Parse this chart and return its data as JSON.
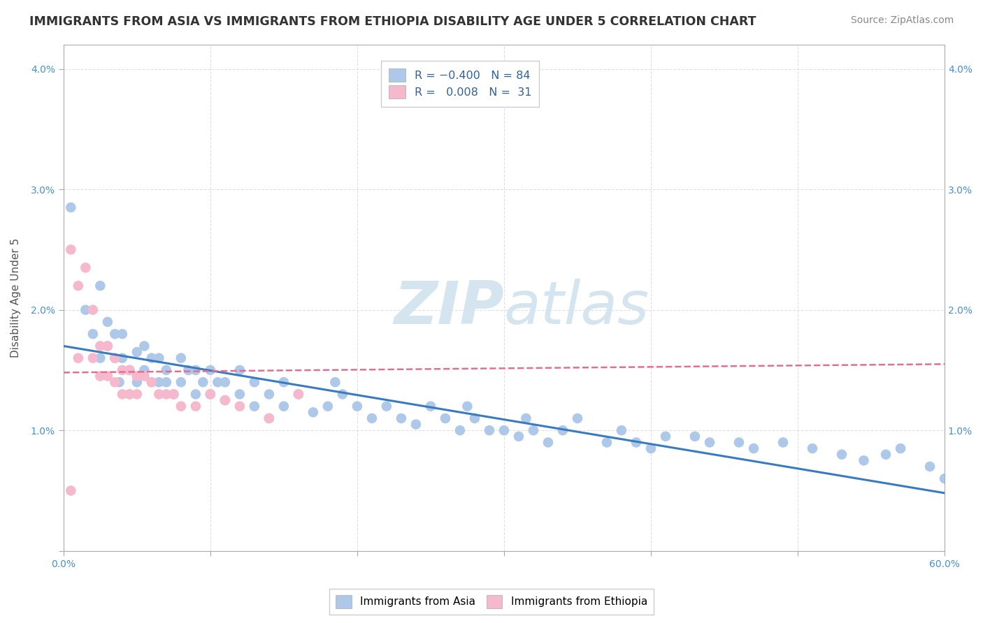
{
  "title": "IMMIGRANTS FROM ASIA VS IMMIGRANTS FROM ETHIOPIA DISABILITY AGE UNDER 5 CORRELATION CHART",
  "source_text": "Source: ZipAtlas.com",
  "ylabel": "Disability Age Under 5",
  "xlim": [
    0.0,
    0.6
  ],
  "ylim": [
    0.0,
    0.042
  ],
  "asia_R": -0.4,
  "asia_N": 84,
  "ethiopia_R": 0.008,
  "ethiopia_N": 31,
  "asia_color": "#adc8e8",
  "ethiopia_color": "#f5b8cc",
  "asia_line_color": "#3a7bbf",
  "ethiopia_line_color": "#e07090",
  "watermark_color": "#d5e5f0",
  "grid_color": "#e0e0e0",
  "asia_trend_x": [
    0.0,
    0.6
  ],
  "asia_trend_y": [
    0.017,
    0.0048
  ],
  "ethiopia_trend_x": [
    0.0,
    0.6
  ],
  "ethiopia_trend_y": [
    0.0148,
    0.0155
  ],
  "asia_scatter_x": [
    0.005,
    0.015,
    0.02,
    0.025,
    0.025,
    0.03,
    0.03,
    0.035,
    0.035,
    0.038,
    0.04,
    0.04,
    0.045,
    0.045,
    0.05,
    0.05,
    0.055,
    0.055,
    0.06,
    0.06,
    0.065,
    0.065,
    0.07,
    0.07,
    0.075,
    0.08,
    0.08,
    0.085,
    0.09,
    0.09,
    0.095,
    0.1,
    0.1,
    0.105,
    0.11,
    0.11,
    0.12,
    0.12,
    0.13,
    0.13,
    0.14,
    0.14,
    0.15,
    0.15,
    0.16,
    0.17,
    0.18,
    0.185,
    0.19,
    0.2,
    0.21,
    0.22,
    0.23,
    0.24,
    0.25,
    0.26,
    0.27,
    0.275,
    0.28,
    0.29,
    0.3,
    0.31,
    0.315,
    0.32,
    0.33,
    0.34,
    0.35,
    0.37,
    0.38,
    0.39,
    0.4,
    0.41,
    0.43,
    0.44,
    0.46,
    0.47,
    0.49,
    0.51,
    0.53,
    0.545,
    0.56,
    0.57,
    0.59,
    0.6
  ],
  "asia_scatter_y": [
    0.0285,
    0.02,
    0.018,
    0.022,
    0.016,
    0.017,
    0.019,
    0.016,
    0.018,
    0.014,
    0.016,
    0.018,
    0.013,
    0.015,
    0.0165,
    0.014,
    0.015,
    0.017,
    0.014,
    0.016,
    0.014,
    0.016,
    0.014,
    0.015,
    0.013,
    0.014,
    0.016,
    0.015,
    0.013,
    0.015,
    0.014,
    0.013,
    0.015,
    0.014,
    0.0125,
    0.014,
    0.013,
    0.015,
    0.012,
    0.014,
    0.013,
    0.011,
    0.012,
    0.014,
    0.013,
    0.0115,
    0.012,
    0.014,
    0.013,
    0.012,
    0.011,
    0.012,
    0.011,
    0.0105,
    0.012,
    0.011,
    0.01,
    0.012,
    0.011,
    0.01,
    0.01,
    0.0095,
    0.011,
    0.01,
    0.009,
    0.01,
    0.011,
    0.009,
    0.01,
    0.009,
    0.0085,
    0.0095,
    0.0095,
    0.009,
    0.009,
    0.0085,
    0.009,
    0.0085,
    0.008,
    0.0075,
    0.008,
    0.0085,
    0.007,
    0.006
  ],
  "ethiopia_scatter_x": [
    0.005,
    0.01,
    0.01,
    0.015,
    0.02,
    0.02,
    0.025,
    0.025,
    0.03,
    0.03,
    0.035,
    0.035,
    0.04,
    0.04,
    0.045,
    0.045,
    0.05,
    0.05,
    0.055,
    0.06,
    0.065,
    0.07,
    0.075,
    0.08,
    0.09,
    0.1,
    0.11,
    0.12,
    0.14,
    0.16,
    0.005
  ],
  "ethiopia_scatter_y": [
    0.025,
    0.022,
    0.016,
    0.0235,
    0.02,
    0.016,
    0.017,
    0.0145,
    0.017,
    0.0145,
    0.016,
    0.014,
    0.015,
    0.013,
    0.015,
    0.013,
    0.0145,
    0.013,
    0.0145,
    0.014,
    0.013,
    0.013,
    0.013,
    0.012,
    0.012,
    0.013,
    0.0125,
    0.012,
    0.011,
    0.013,
    0.005
  ]
}
